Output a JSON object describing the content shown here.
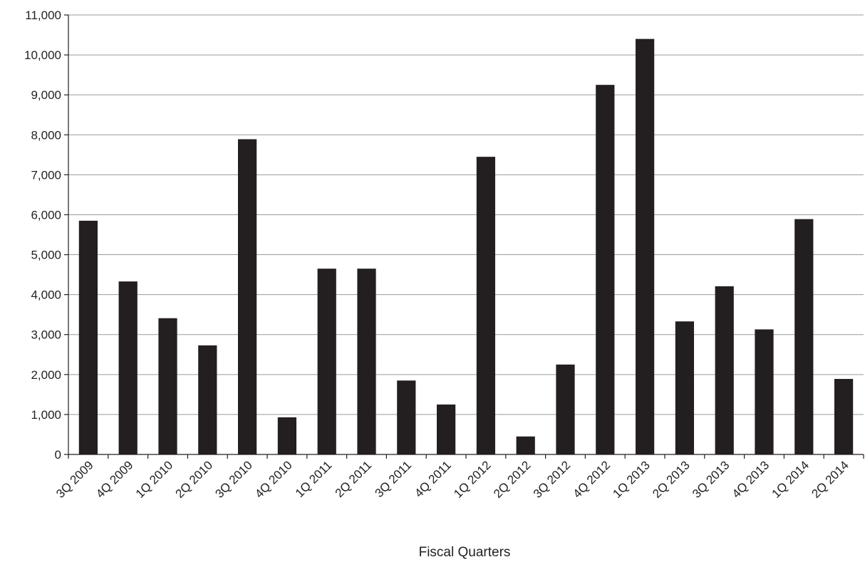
{
  "chart_data": {
    "type": "bar",
    "title": "",
    "xlabel": "Fiscal Quarters",
    "ylabel": "",
    "ylim": [
      0,
      11000
    ],
    "yticks": [
      0,
      1000,
      2000,
      3000,
      4000,
      5000,
      6000,
      7000,
      8000,
      9000,
      10000,
      11000
    ],
    "ytick_labels": [
      "0",
      "1,000",
      "2,000",
      "3,000",
      "4,000",
      "5,000",
      "6,000",
      "7,000",
      "8,000",
      "9,000",
      "10,000",
      "11,000"
    ],
    "grid": "horizontal",
    "legend": "none",
    "bar_color": "#231f20",
    "categories": [
      "3Q 2009",
      "4Q 2009",
      "1Q 2010",
      "2Q 2010",
      "3Q 2010",
      "4Q 2010",
      "1Q 2011",
      "2Q 2011",
      "3Q 2011",
      "4Q 2011",
      "1Q 2012",
      "2Q 2012",
      "3Q 2012",
      "4Q 2012",
      "1Q 2013",
      "2Q 2013",
      "3Q 2013",
      "4Q 2013",
      "1Q 2014",
      "2Q 2014"
    ],
    "values": [
      5850,
      4330,
      3410,
      2730,
      7890,
      930,
      4650,
      4650,
      1850,
      1250,
      7450,
      450,
      2250,
      9250,
      10400,
      3330,
      4210,
      3130,
      5890,
      1890
    ]
  }
}
